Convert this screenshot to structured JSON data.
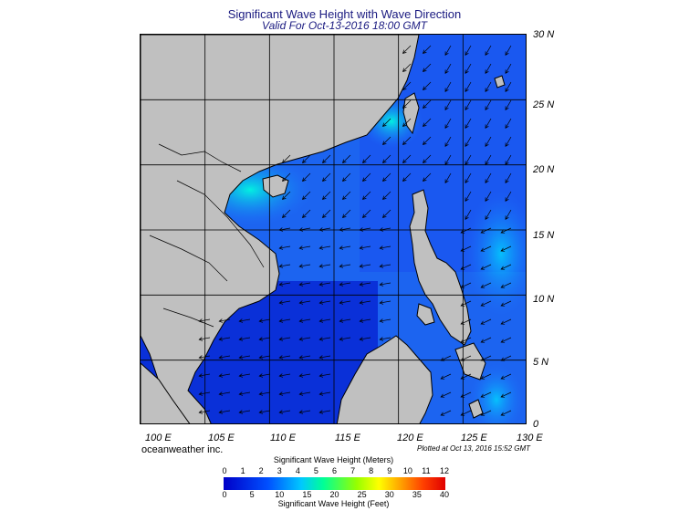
{
  "title": "Significant Wave Height with Wave Direction",
  "subtitle": "Valid For Oct-13-2016 18:00 GMT",
  "lat_labels": [
    "30 N",
    "25 N",
    "20 N",
    "15 N",
    "10 N",
    "5 N",
    "0"
  ],
  "lon_labels": [
    "100 E",
    "105 E",
    "110 E",
    "115 E",
    "120 E",
    "125 E",
    "130 E"
  ],
  "credit": "oceanweather inc.",
  "plotted": "Plotted at Oct 13, 2016 15:52 GMT",
  "legend": {
    "meters_title": "Significant Wave Height (Meters)",
    "meters_ticks": [
      "0",
      "1",
      "2",
      "3",
      "4",
      "5",
      "6",
      "7",
      "8",
      "9",
      "10",
      "11",
      "12"
    ],
    "feet_ticks": [
      "0",
      "5",
      "10",
      "15",
      "20",
      "25",
      "30",
      "35",
      "40"
    ],
    "feet_title": "Significant Wave Height (Feet)"
  },
  "colors": {
    "land": "#c0c0c0",
    "sea_low": "#0000c8",
    "sea_mid": "#1e6cff",
    "sea_high": "#00e6ff",
    "title": "#1a1a80"
  }
}
